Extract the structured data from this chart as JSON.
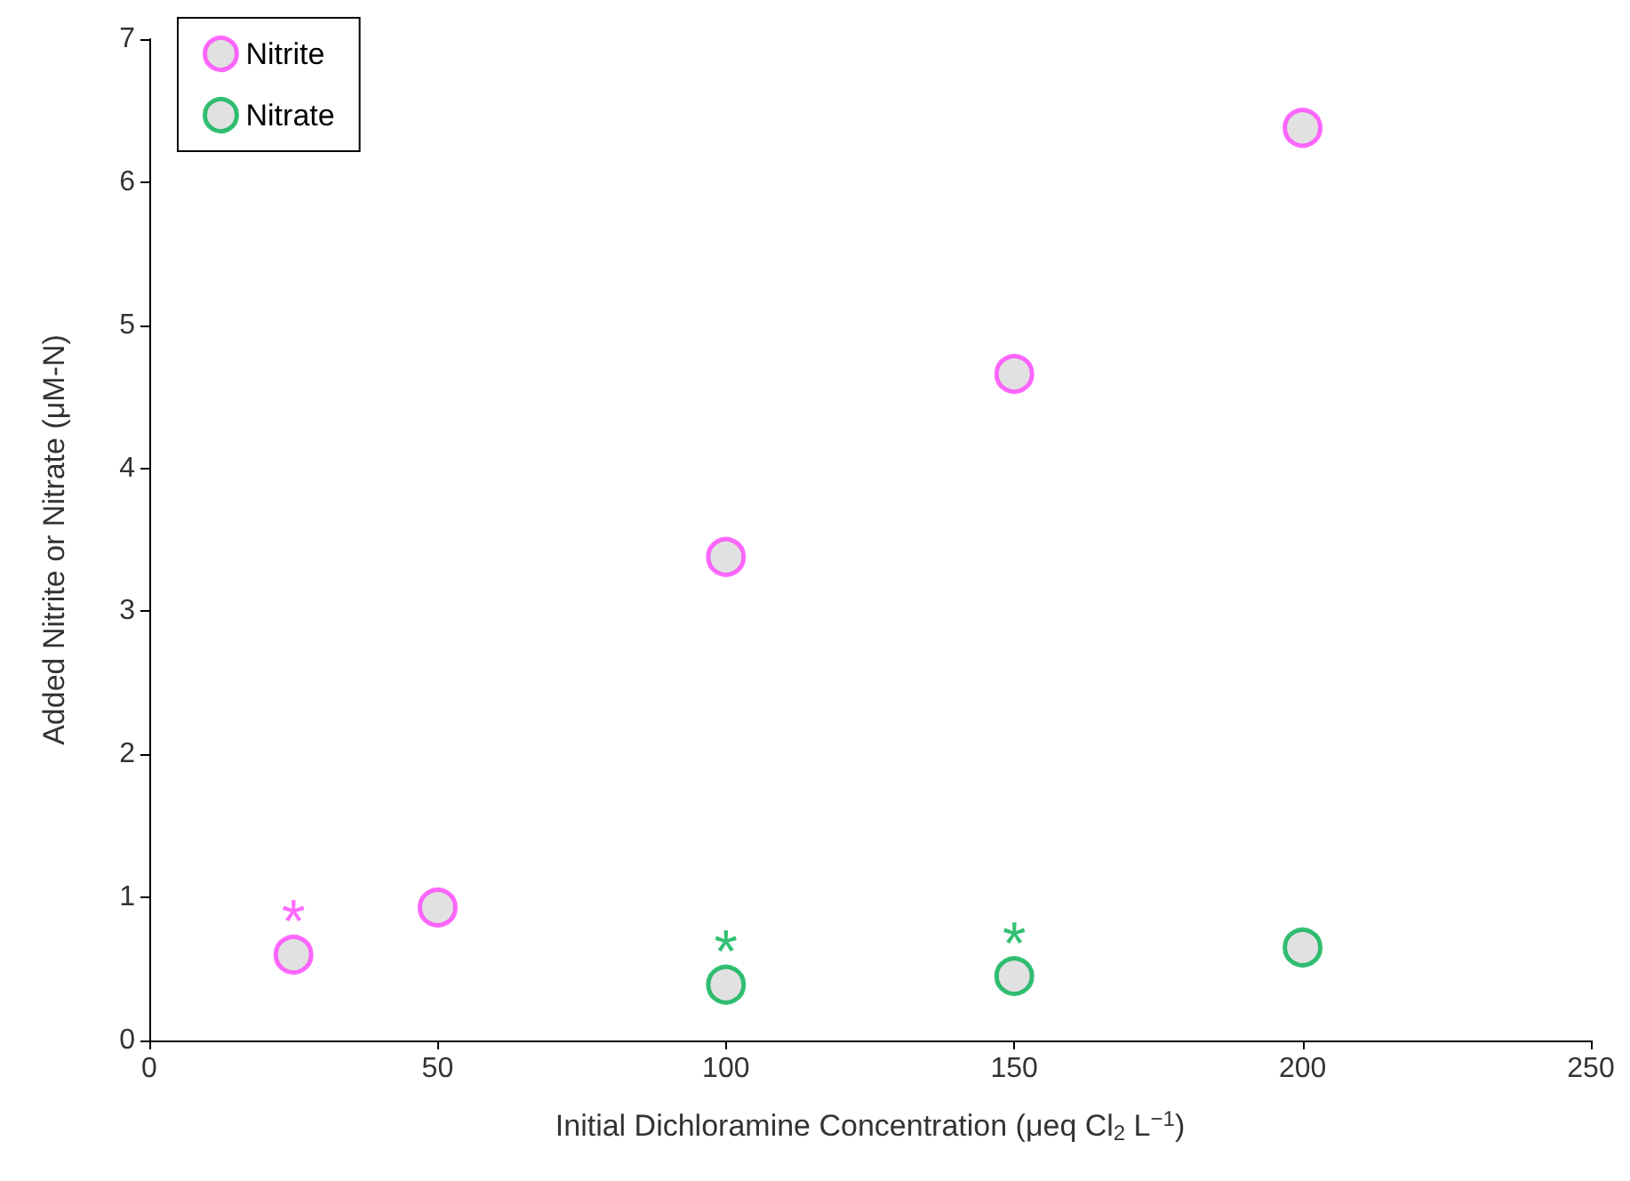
{
  "chart_data": {
    "type": "scatter",
    "xlabel": "Initial Dichloramine Concentration (μeq Cl$_{2}$ L$^{−1}$)",
    "ylabel": "Added Nitrite or Nitrate (μM-N)",
    "series": [
      {
        "name": "Nitrite",
        "color": "#ff44ff",
        "x": [
          25,
          50,
          100,
          150,
          200
        ],
        "values": [
          0.6,
          0.93,
          3.38,
          4.66,
          6.38
        ]
      },
      {
        "name": "Nitrate",
        "color": "#00b050",
        "x": [
          100,
          150,
          200
        ],
        "values": [
          0.39,
          0.45,
          0.65
        ]
      }
    ],
    "annotations": [
      {
        "text": "*",
        "x": 25,
        "y": 0.6
      },
      {
        "text": "*",
        "x": 100,
        "y": 0.39
      },
      {
        "text": "*",
        "x": 150,
        "y": 0.45
      }
    ],
    "xlim": [
      0,
      250
    ],
    "xticks": [
      0,
      50,
      100,
      150,
      200,
      250
    ],
    "ylim": [
      0,
      7
    ],
    "yticks": [
      0,
      1,
      2,
      3,
      4,
      5,
      6,
      7
    ],
    "marker": "circle",
    "grid": false,
    "legend": "top left"
  }
}
